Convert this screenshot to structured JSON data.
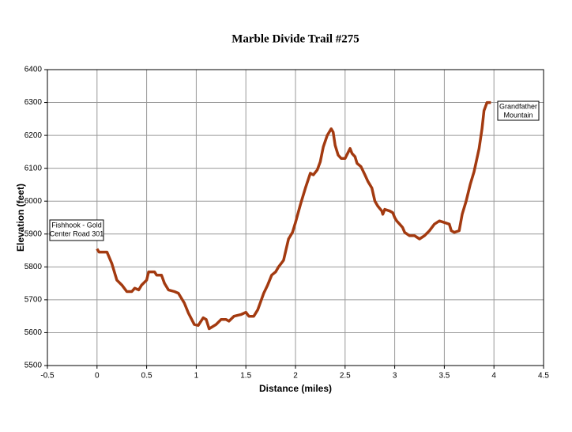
{
  "chart_data": {
    "type": "line",
    "title": "Marble Divide Trail #275",
    "x_label": "Distance (miles)",
    "y_label": "Elevation (feet)",
    "xlim": [
      -0.5,
      4.5
    ],
    "xticks": [
      -0.5,
      0,
      0.5,
      1,
      1.5,
      2,
      2.5,
      3,
      3.5,
      4,
      4.5
    ],
    "ylim": [
      5500,
      6400
    ],
    "yticks": [
      5500,
      5600,
      5700,
      5800,
      5900,
      6000,
      6100,
      6200,
      6300,
      6400
    ],
    "grid": true,
    "series": [
      {
        "name": "Elevation",
        "color": "#a33a10",
        "x": [
          0,
          0.02,
          0.1,
          0.15,
          0.2,
          0.25,
          0.3,
          0.35,
          0.38,
          0.42,
          0.45,
          0.5,
          0.52,
          0.58,
          0.6,
          0.65,
          0.68,
          0.72,
          0.78,
          0.82,
          0.88,
          0.92,
          0.98,
          1.02,
          1.07,
          1.1,
          1.13,
          1.2,
          1.25,
          1.3,
          1.33,
          1.38,
          1.45,
          1.5,
          1.53,
          1.58,
          1.62,
          1.68,
          1.72,
          1.76,
          1.8,
          1.83,
          1.88,
          1.93,
          1.97,
          2.0,
          2.05,
          2.1,
          2.15,
          2.18,
          2.22,
          2.25,
          2.28,
          2.32,
          2.36,
          2.38,
          2.4,
          2.43,
          2.46,
          2.5,
          2.55,
          2.57,
          2.6,
          2.62,
          2.66,
          2.7,
          2.73,
          2.77,
          2.8,
          2.83,
          2.87,
          2.88,
          2.9,
          2.95,
          2.98,
          3.0,
          3.02,
          3.05,
          3.08,
          3.1,
          3.15,
          3.2,
          3.25,
          3.3,
          3.35,
          3.4,
          3.45,
          3.5,
          3.55,
          3.57,
          3.6,
          3.65,
          3.68,
          3.72,
          3.76,
          3.8,
          3.85,
          3.88,
          3.9,
          3.93,
          3.97
        ],
        "values": [
          5855,
          5845,
          5845,
          5810,
          5760,
          5745,
          5725,
          5725,
          5735,
          5730,
          5745,
          5760,
          5785,
          5785,
          5775,
          5775,
          5750,
          5730,
          5725,
          5720,
          5690,
          5660,
          5625,
          5622,
          5645,
          5640,
          5612,
          5625,
          5640,
          5640,
          5635,
          5650,
          5655,
          5662,
          5650,
          5650,
          5670,
          5720,
          5745,
          5775,
          5785,
          5800,
          5820,
          5885,
          5905,
          5935,
          5990,
          6040,
          6085,
          6080,
          6095,
          6120,
          6165,
          6200,
          6220,
          6210,
          6170,
          6140,
          6130,
          6130,
          6160,
          6145,
          6135,
          6115,
          6105,
          6080,
          6060,
          6040,
          6000,
          5985,
          5970,
          5960,
          5975,
          5970,
          5965,
          5950,
          5940,
          5930,
          5920,
          5905,
          5895,
          5895,
          5885,
          5895,
          5910,
          5930,
          5940,
          5935,
          5930,
          5910,
          5905,
          5910,
          5960,
          6000,
          6050,
          6090,
          6160,
          6220,
          6275,
          6300,
          6300
        ]
      }
    ],
    "annotations": [
      {
        "lines": [
          "Fishhook - Gold",
          "Center Road 301"
        ]
      },
      {
        "lines": [
          "Grandfather",
          "Mountain"
        ]
      }
    ]
  }
}
